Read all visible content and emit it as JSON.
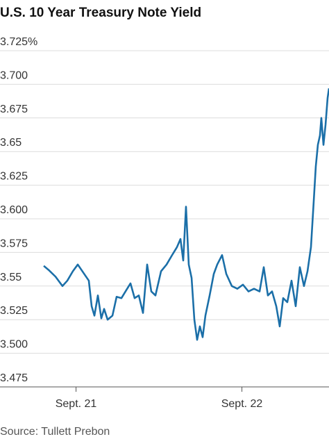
{
  "chart_data": {
    "type": "line",
    "title": "U.S. 10 Year Treasury Note Yield",
    "source": "Source: Tullett Prebon",
    "x": [
      19.33,
      20.03,
      21.03,
      22.04,
      22.74,
      23.54,
      24.25,
      25.05,
      25.85,
      26.26,
      26.66,
      27.16,
      27.66,
      28.06,
      28.57,
      29.27,
      29.87,
      30.57,
      31.28,
      31.88,
      32.48,
      33.08,
      33.69,
      34.29,
      34.89,
      35.49,
      36.3,
      37.1,
      37.9,
      38.61,
      39.11,
      39.51,
      39.91,
      40.31,
      40.72,
      41.12,
      41.52,
      41.92,
      42.32,
      42.72,
      43.33,
      43.93,
      44.43,
      45.13,
      45.74,
      46.54,
      47.34,
      48.15,
      48.95,
      49.75,
      50.56,
      51.16,
      51.76,
      52.36,
      52.97,
      53.47,
      53.97,
      54.57,
      55.18,
      55.78,
      56.38,
      56.98,
      57.49,
      57.99,
      58.39,
      58.69,
      58.99,
      59.29,
      59.49,
      59.8,
      60.1,
      60.4,
      60.6
    ],
    "series": [
      {
        "color": "#1b6fa8",
        "values": [
          3.565,
          3.562,
          3.557,
          3.55,
          3.554,
          3.561,
          3.566,
          3.56,
          3.554,
          3.535,
          3.528,
          3.543,
          3.526,
          3.533,
          3.525,
          3.528,
          3.542,
          3.541,
          3.547,
          3.552,
          3.541,
          3.543,
          3.53,
          3.566,
          3.546,
          3.543,
          3.561,
          3.566,
          3.573,
          3.579,
          3.585,
          3.569,
          3.609,
          3.566,
          3.556,
          3.525,
          3.51,
          3.52,
          3.512,
          3.528,
          3.543,
          3.559,
          3.566,
          3.573,
          3.559,
          3.55,
          3.548,
          3.551,
          3.546,
          3.548,
          3.546,
          3.564,
          3.543,
          3.546,
          3.535,
          3.52,
          3.541,
          3.538,
          3.554,
          3.535,
          3.564,
          3.55,
          3.561,
          3.579,
          3.613,
          3.639,
          3.655,
          3.662,
          3.675,
          3.655,
          3.67,
          3.69,
          3.697
        ]
      }
    ],
    "xlim": [
      13,
      60.6
    ],
    "xticks": [
      {
        "value": 24,
        "label": "Sept. 21"
      },
      {
        "value": 48,
        "label": "Sept. 22"
      }
    ],
    "ylim": [
      3.475,
      3.725
    ],
    "yticks": [
      {
        "value": 3.475,
        "label": "3.475"
      },
      {
        "value": 3.5,
        "label": "3.500"
      },
      3.525,
      3.55,
      3.575,
      {
        "value": 3.6,
        "label": "3.600"
      },
      3.625,
      3.65,
      3.675,
      {
        "value": 3.7,
        "label": "3.700"
      },
      {
        "value": 3.725,
        "label": "3.725%"
      }
    ],
    "grid": true
  }
}
